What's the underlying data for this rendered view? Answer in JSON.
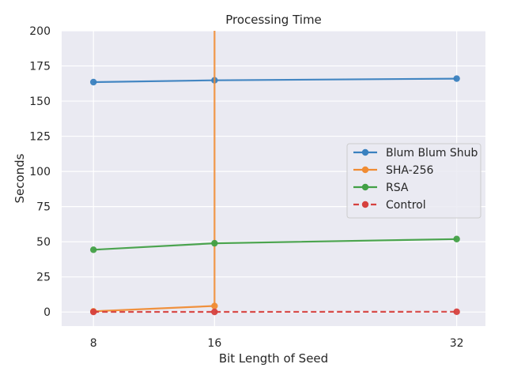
{
  "chart_data": {
    "type": "line",
    "title": "Processing Time",
    "xlabel": "Bit Length of Seed",
    "ylabel": "Seconds",
    "x": [
      8,
      16,
      32
    ],
    "xlim": [
      5.9,
      33.9
    ],
    "ylim": [
      -10,
      200
    ],
    "xticks": [
      8,
      16,
      32
    ],
    "yticks": [
      0,
      25,
      50,
      75,
      100,
      125,
      150,
      175,
      200
    ],
    "grid": true,
    "legend_position": "center-right",
    "series": [
      {
        "name": "Blum Blum Shub",
        "color": "#3a81bf",
        "dashed": false,
        "points": [
          [
            8,
            163.5
          ],
          [
            16,
            164.8
          ],
          [
            32,
            166.0
          ]
        ]
      },
      {
        "name": "SHA-256",
        "color": "#f08c34",
        "dashed": false,
        "points": [
          [
            8,
            0.5
          ],
          [
            16,
            4.3
          ]
        ],
        "vertical_at_x": 16
      },
      {
        "name": "RSA",
        "color": "#42a046",
        "dashed": false,
        "points": [
          [
            8,
            44.3
          ],
          [
            16,
            48.9
          ],
          [
            32,
            51.9
          ]
        ]
      },
      {
        "name": "Control",
        "color": "#d6413e",
        "dashed": true,
        "points": [
          [
            8,
            0.1
          ],
          [
            16,
            0.1
          ],
          [
            32,
            0.2
          ]
        ]
      }
    ]
  }
}
